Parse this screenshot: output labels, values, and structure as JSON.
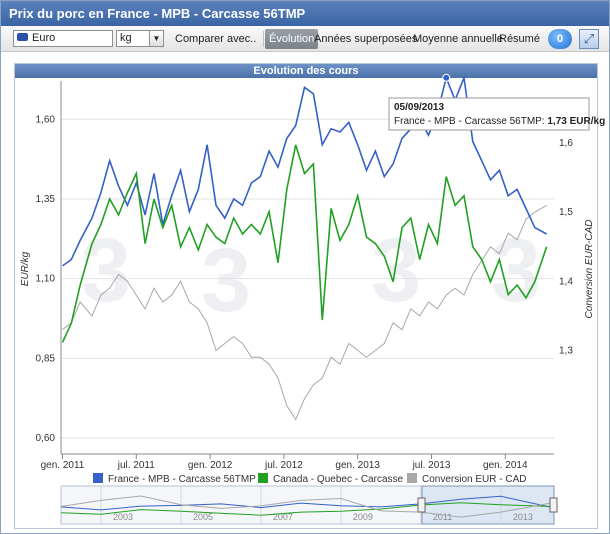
{
  "window": {
    "title": "Prix du porc en France - MPB - Carcasse 56TMP"
  },
  "toolbar": {
    "currency": "Euro",
    "unit": "kg",
    "compare_label": "Comparer avec..",
    "tabs": [
      "Évolution",
      "Années superposées",
      "Moyenne annuelle",
      "Résumé"
    ],
    "active_tab": 0,
    "badge_count": "0",
    "icons": {
      "badge": "counter-badge-icon",
      "expand": "fullscreen-icon",
      "flag": "eu-flag-icon"
    }
  },
  "chart_panel": {
    "header": "Evolution des cours"
  },
  "tooltip": {
    "date": "05/09/2013",
    "series": "France - MPB - Carcasse 56TMP: ",
    "value": "1,73 EUR/kg"
  },
  "navigator": {
    "year_labels": [
      "2003",
      "2005",
      "2007",
      "2009",
      "2011",
      "2013"
    ]
  },
  "chart_data": {
    "type": "line",
    "ylabel": "EUR/kg",
    "y2label": "Conversion EUR-CAD",
    "ylim": [
      0.55,
      1.72
    ],
    "y2lim": [
      1.15,
      1.69
    ],
    "y_ticks": [
      "0,60",
      "0,85",
      "1,10",
      "1,35",
      "1,60"
    ],
    "y_tick_values": [
      0.6,
      0.85,
      1.1,
      1.35,
      1.6
    ],
    "y2_ticks": [
      "1,3",
      "1,4",
      "1,5",
      "1,6"
    ],
    "y2_tick_values": [
      1.3,
      1.4,
      1.5,
      1.6
    ],
    "x_ticks": [
      "gen. 2011",
      "jul. 2011",
      "gen. 2012",
      "jul. 2012",
      "gen. 2013",
      "jul. 2013",
      "gen. 2014"
    ],
    "x_tick_values": [
      2011.0,
      2011.5,
      2012.0,
      2012.5,
      2013.0,
      2013.5,
      2014.0
    ],
    "xlim": [
      2010.99,
      2014.33
    ],
    "grid": true,
    "legend_position": "bottom",
    "colors": {
      "france": "#3560c8",
      "canada": "#22a022",
      "cad": "#a8a8a8"
    },
    "series": [
      {
        "name": "France - MPB - Carcasse 56TMP",
        "axis": "left",
        "x": [
          2011.0,
          2011.06,
          2011.12,
          2011.2,
          2011.26,
          2011.32,
          2011.38,
          2011.44,
          2011.5,
          2011.56,
          2011.62,
          2011.68,
          2011.74,
          2011.8,
          2011.86,
          2011.92,
          2011.98,
          2012.04,
          2012.1,
          2012.16,
          2012.22,
          2012.28,
          2012.34,
          2012.4,
          2012.46,
          2012.52,
          2012.58,
          2012.64,
          2012.7,
          2012.76,
          2012.82,
          2012.88,
          2012.94,
          2013.0,
          2013.06,
          2013.12,
          2013.18,
          2013.24,
          2013.3,
          2013.36,
          2013.42,
          2013.48,
          2013.54,
          2013.6,
          2013.66,
          2013.72,
          2013.78,
          2013.84,
          2013.9,
          2013.96,
          2014.02,
          2014.08,
          2014.14,
          2014.2,
          2014.28
        ],
        "y": [
          1.14,
          1.16,
          1.22,
          1.29,
          1.37,
          1.47,
          1.39,
          1.33,
          1.4,
          1.3,
          1.43,
          1.27,
          1.36,
          1.44,
          1.31,
          1.38,
          1.52,
          1.33,
          1.29,
          1.35,
          1.33,
          1.4,
          1.42,
          1.5,
          1.45,
          1.54,
          1.58,
          1.7,
          1.68,
          1.52,
          1.57,
          1.56,
          1.59,
          1.52,
          1.44,
          1.5,
          1.42,
          1.46,
          1.54,
          1.57,
          1.6,
          1.55,
          1.62,
          1.73,
          1.66,
          1.73,
          1.53,
          1.47,
          1.41,
          1.44,
          1.36,
          1.38,
          1.32,
          1.26,
          1.24
        ]
      },
      {
        "name": "Canada - Quebec - Carcasse",
        "axis": "left",
        "x": [
          2011.0,
          2011.06,
          2011.12,
          2011.2,
          2011.26,
          2011.32,
          2011.38,
          2011.44,
          2011.5,
          2011.56,
          2011.62,
          2011.68,
          2011.74,
          2011.8,
          2011.86,
          2011.92,
          2011.98,
          2012.04,
          2012.1,
          2012.16,
          2012.22,
          2012.28,
          2012.34,
          2012.4,
          2012.46,
          2012.52,
          2012.58,
          2012.64,
          2012.7,
          2012.76,
          2012.82,
          2012.88,
          2012.94,
          2013.0,
          2013.06,
          2013.12,
          2013.18,
          2013.24,
          2013.3,
          2013.36,
          2013.42,
          2013.48,
          2013.54,
          2013.6,
          2013.66,
          2013.72,
          2013.78,
          2013.84,
          2013.9,
          2013.96,
          2014.02,
          2014.08,
          2014.14,
          2014.2,
          2014.28
        ],
        "y": [
          0.9,
          0.96,
          1.08,
          1.21,
          1.27,
          1.35,
          1.3,
          1.37,
          1.43,
          1.21,
          1.35,
          1.26,
          1.33,
          1.2,
          1.26,
          1.19,
          1.27,
          1.23,
          1.21,
          1.29,
          1.24,
          1.27,
          1.24,
          1.31,
          1.15,
          1.38,
          1.52,
          1.43,
          1.46,
          0.97,
          1.32,
          1.22,
          1.27,
          1.36,
          1.23,
          1.21,
          1.17,
          1.09,
          1.26,
          1.29,
          1.16,
          1.27,
          1.21,
          1.42,
          1.33,
          1.36,
          1.2,
          1.16,
          1.09,
          1.16,
          1.05,
          1.08,
          1.04,
          1.09,
          1.2
        ]
      },
      {
        "name": "Conversion EUR - CAD",
        "axis": "right",
        "x": [
          2011.0,
          2011.06,
          2011.12,
          2011.2,
          2011.26,
          2011.32,
          2011.38,
          2011.44,
          2011.5,
          2011.56,
          2011.62,
          2011.68,
          2011.74,
          2011.8,
          2011.86,
          2011.92,
          2011.98,
          2012.04,
          2012.1,
          2012.16,
          2012.22,
          2012.28,
          2012.34,
          2012.4,
          2012.46,
          2012.52,
          2012.58,
          2012.64,
          2012.7,
          2012.76,
          2012.82,
          2012.88,
          2012.94,
          2013.0,
          2013.06,
          2013.12,
          2013.18,
          2013.24,
          2013.3,
          2013.36,
          2013.42,
          2013.48,
          2013.54,
          2013.6,
          2013.66,
          2013.72,
          2013.78,
          2013.84,
          2013.9,
          2013.96,
          2014.02,
          2014.08,
          2014.14,
          2014.2,
          2014.28
        ],
        "y": [
          1.33,
          1.34,
          1.37,
          1.35,
          1.38,
          1.39,
          1.41,
          1.4,
          1.38,
          1.36,
          1.39,
          1.37,
          1.38,
          1.4,
          1.37,
          1.36,
          1.34,
          1.3,
          1.31,
          1.32,
          1.31,
          1.29,
          1.29,
          1.28,
          1.26,
          1.22,
          1.2,
          1.23,
          1.25,
          1.26,
          1.29,
          1.28,
          1.31,
          1.3,
          1.29,
          1.3,
          1.31,
          1.34,
          1.33,
          1.36,
          1.35,
          1.37,
          1.36,
          1.38,
          1.39,
          1.38,
          1.41,
          1.43,
          1.45,
          1.44,
          1.47,
          1.46,
          1.49,
          1.5,
          1.51
        ]
      }
    ]
  }
}
